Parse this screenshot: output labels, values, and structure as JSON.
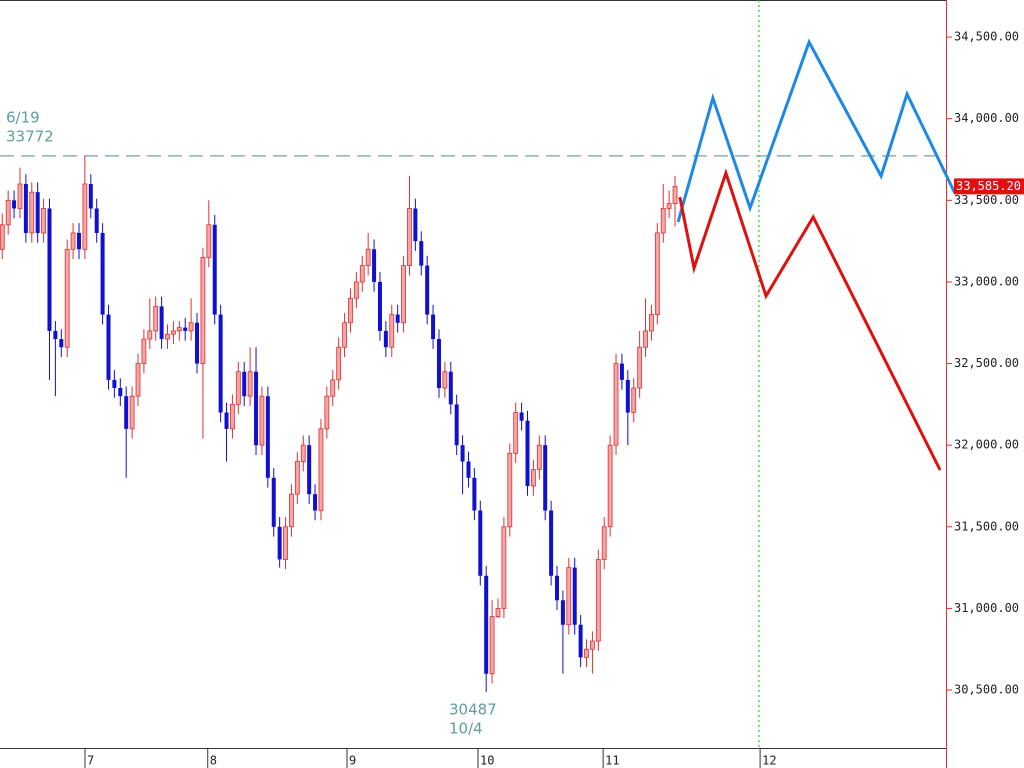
{
  "chart_data": {
    "type": "candlestick",
    "xlim": [
      -0.3,
      160
    ],
    "ylim": [
      30145,
      34727
    ],
    "xticks": [
      {
        "value": 14.1,
        "label": "7"
      },
      {
        "value": 34.9,
        "label": "8"
      },
      {
        "value": 58.5,
        "label": "9"
      },
      {
        "value": 80.7,
        "label": "10"
      },
      {
        "value": 101.9,
        "label": "11"
      },
      {
        "value": 128.5,
        "label": "12"
      }
    ],
    "yticks": [
      {
        "value": 30500,
        "label": "30,500.00"
      },
      {
        "value": 31000,
        "label": "31,000.00"
      },
      {
        "value": 31500,
        "label": "31,500.00"
      },
      {
        "value": 32000,
        "label": "32,000.00"
      },
      {
        "value": 32500,
        "label": "32,500.00"
      },
      {
        "value": 33000,
        "label": "33,000.00"
      },
      {
        "value": 33500,
        "label": "33,500.00"
      },
      {
        "value": 34000,
        "label": "34,000.00"
      },
      {
        "value": 34500,
        "label": "34,500.00"
      }
    ],
    "up_color": "#e03030",
    "down_color": "#1010d0",
    "ohlc": [
      [
        33200,
        33420,
        33140,
        33350
      ],
      [
        33350,
        33560,
        33290,
        33500
      ],
      [
        33500,
        33560,
        33390,
        33450
      ],
      [
        33450,
        33700,
        33390,
        33600
      ],
      [
        33600,
        33660,
        33240,
        33300
      ],
      [
        33300,
        33610,
        33240,
        33550
      ],
      [
        33550,
        33610,
        33240,
        33300
      ],
      [
        33300,
        33510,
        33240,
        33450
      ],
      [
        33450,
        33510,
        32400,
        32700
      ],
      [
        32700,
        32760,
        32300,
        32650
      ],
      [
        32650,
        32710,
        32540,
        32600
      ],
      [
        32600,
        33260,
        32540,
        33200
      ],
      [
        33200,
        33360,
        33140,
        33300
      ],
      [
        33300,
        33360,
        33140,
        33200
      ],
      [
        33200,
        33772,
        33140,
        33600
      ],
      [
        33600,
        33660,
        33390,
        33450
      ],
      [
        33450,
        33510,
        33240,
        33300
      ],
      [
        33300,
        33360,
        32740,
        32800
      ],
      [
        32800,
        32860,
        32340,
        32400
      ],
      [
        32400,
        32460,
        32290,
        32350
      ],
      [
        32350,
        32410,
        32240,
        32300
      ],
      [
        32300,
        32360,
        31800,
        32100
      ],
      [
        32100,
        32360,
        32040,
        32300
      ],
      [
        32300,
        32560,
        32240,
        32500
      ],
      [
        32500,
        32710,
        32440,
        32650
      ],
      [
        32650,
        32900,
        32590,
        32700
      ],
      [
        32700,
        32910,
        32640,
        32850
      ],
      [
        32850,
        32910,
        32590,
        32650
      ],
      [
        32650,
        32740,
        32590,
        32680
      ],
      [
        32680,
        32760,
        32620,
        32700
      ],
      [
        32700,
        32760,
        32640,
        32720
      ],
      [
        32720,
        32780,
        32640,
        32700
      ],
      [
        32700,
        32900,
        32640,
        32750
      ],
      [
        32750,
        32810,
        32440,
        32500
      ],
      [
        32500,
        33210,
        32040,
        33150
      ],
      [
        33150,
        33500,
        33090,
        33350
      ],
      [
        33350,
        33410,
        32740,
        32800
      ],
      [
        32800,
        32860,
        32140,
        32200
      ],
      [
        32200,
        32260,
        31900,
        32100
      ],
      [
        32100,
        32310,
        32040,
        32250
      ],
      [
        32250,
        32510,
        32190,
        32450
      ],
      [
        32450,
        32510,
        32240,
        32300
      ],
      [
        32300,
        32600,
        32240,
        32450
      ],
      [
        32450,
        32600,
        31940,
        32000
      ],
      [
        32000,
        32360,
        31940,
        32300
      ],
      [
        32300,
        32360,
        31740,
        31800
      ],
      [
        31800,
        31860,
        31440,
        31500
      ],
      [
        31500,
        31560,
        31250,
        31300
      ],
      [
        31300,
        31560,
        31240,
        31500
      ],
      [
        31500,
        31760,
        31440,
        31700
      ],
      [
        31700,
        31960,
        31640,
        31900
      ],
      [
        31900,
        32060,
        31840,
        32000
      ],
      [
        32000,
        32060,
        31640,
        31700
      ],
      [
        31700,
        31760,
        31540,
        31600
      ],
      [
        31600,
        32160,
        31540,
        32100
      ],
      [
        32100,
        32360,
        32040,
        32300
      ],
      [
        32300,
        32460,
        32240,
        32400
      ],
      [
        32400,
        32660,
        32340,
        32600
      ],
      [
        32600,
        32810,
        32540,
        32750
      ],
      [
        32750,
        32960,
        32690,
        32900
      ],
      [
        32900,
        33060,
        32840,
        33000
      ],
      [
        33000,
        33160,
        32940,
        33100
      ],
      [
        33100,
        33300,
        33040,
        33200
      ],
      [
        33200,
        33260,
        32940,
        33000
      ],
      [
        33000,
        33060,
        32640,
        32700
      ],
      [
        32700,
        32760,
        32540,
        32600
      ],
      [
        32600,
        32860,
        32540,
        32800
      ],
      [
        32800,
        32860,
        32690,
        32750
      ],
      [
        32750,
        33160,
        32690,
        33100
      ],
      [
        33100,
        33650,
        33040,
        33450
      ],
      [
        33450,
        33510,
        33190,
        33250
      ],
      [
        33250,
        33310,
        33040,
        33100
      ],
      [
        33100,
        33160,
        32740,
        32800
      ],
      [
        32800,
        32860,
        32590,
        32650
      ],
      [
        32650,
        32710,
        32290,
        32350
      ],
      [
        32350,
        32510,
        32290,
        32450
      ],
      [
        32450,
        32510,
        32190,
        32250
      ],
      [
        32250,
        32310,
        31940,
        32000
      ],
      [
        32000,
        32060,
        31700,
        31900
      ],
      [
        31900,
        31960,
        31740,
        31800
      ],
      [
        31800,
        31860,
        31540,
        31600
      ],
      [
        31600,
        31660,
        31140,
        31200
      ],
      [
        31200,
        31260,
        30487,
        30600
      ],
      [
        30600,
        31050,
        30540,
        30950
      ],
      [
        30950,
        31060,
        30940,
        31000
      ],
      [
        31000,
        31560,
        30940,
        31500
      ],
      [
        31500,
        32010,
        31440,
        31950
      ],
      [
        31950,
        32260,
        31890,
        32200
      ],
      [
        32200,
        32260,
        32090,
        32150
      ],
      [
        32150,
        32210,
        31690,
        31750
      ],
      [
        31750,
        31910,
        31690,
        31850
      ],
      [
        31850,
        32060,
        31790,
        32000
      ],
      [
        32000,
        32060,
        31540,
        31600
      ],
      [
        31600,
        31660,
        31140,
        31200
      ],
      [
        31200,
        31260,
        30990,
        31050
      ],
      [
        31050,
        31110,
        30600,
        30900
      ],
      [
        30900,
        31310,
        30840,
        31250
      ],
      [
        31250,
        31310,
        30840,
        30900
      ],
      [
        30900,
        30960,
        30640,
        30700
      ],
      [
        30700,
        30810,
        30640,
        30750
      ],
      [
        30750,
        30860,
        30600,
        30800
      ],
      [
        30800,
        31360,
        30740,
        31300
      ],
      [
        31300,
        31560,
        31240,
        31500
      ],
      [
        31500,
        32060,
        31440,
        32000
      ],
      [
        32000,
        32560,
        31940,
        32500
      ],
      [
        32500,
        32560,
        32340,
        32400
      ],
      [
        32400,
        32460,
        32000,
        32200
      ],
      [
        32200,
        32410,
        32140,
        32350
      ],
      [
        32350,
        32700,
        32290,
        32600
      ],
      [
        32600,
        32900,
        32540,
        32700
      ],
      [
        32700,
        32860,
        32640,
        32800
      ],
      [
        32800,
        33360,
        32740,
        33300
      ],
      [
        33300,
        33600,
        33240,
        33450
      ],
      [
        33450,
        33560,
        33390,
        33480
      ],
      [
        33480,
        33650,
        33340,
        33585.2
      ]
    ],
    "lines": [
      {
        "color": "#1e88e5",
        "x": [
          114.6,
          120.5,
          126.8,
          136.8,
          149.0,
          153.4,
          161.5
        ],
        "values": [
          33367,
          34126,
          33453,
          34469,
          33649,
          34151,
          33544
        ]
      },
      {
        "color": "#e01010",
        "x": [
          114.9,
          117.3,
          122.7,
          129.5,
          137.5,
          159.0
        ],
        "values": [
          33520,
          33085,
          33667,
          32914,
          33397,
          31848
        ]
      }
    ],
    "hline": {
      "value": 33772,
      "color": "#7a9ab0"
    },
    "vline": {
      "value": 128.3,
      "color": "#22cc22"
    },
    "annotations": [
      {
        "lines": [
          "6/19",
          "33772"
        ]
      },
      {
        "lines": [
          "30487",
          "10/4"
        ]
      }
    ],
    "last_price": {
      "value": 33585.2,
      "label": "33,585.20",
      "color": "#e01010"
    }
  }
}
